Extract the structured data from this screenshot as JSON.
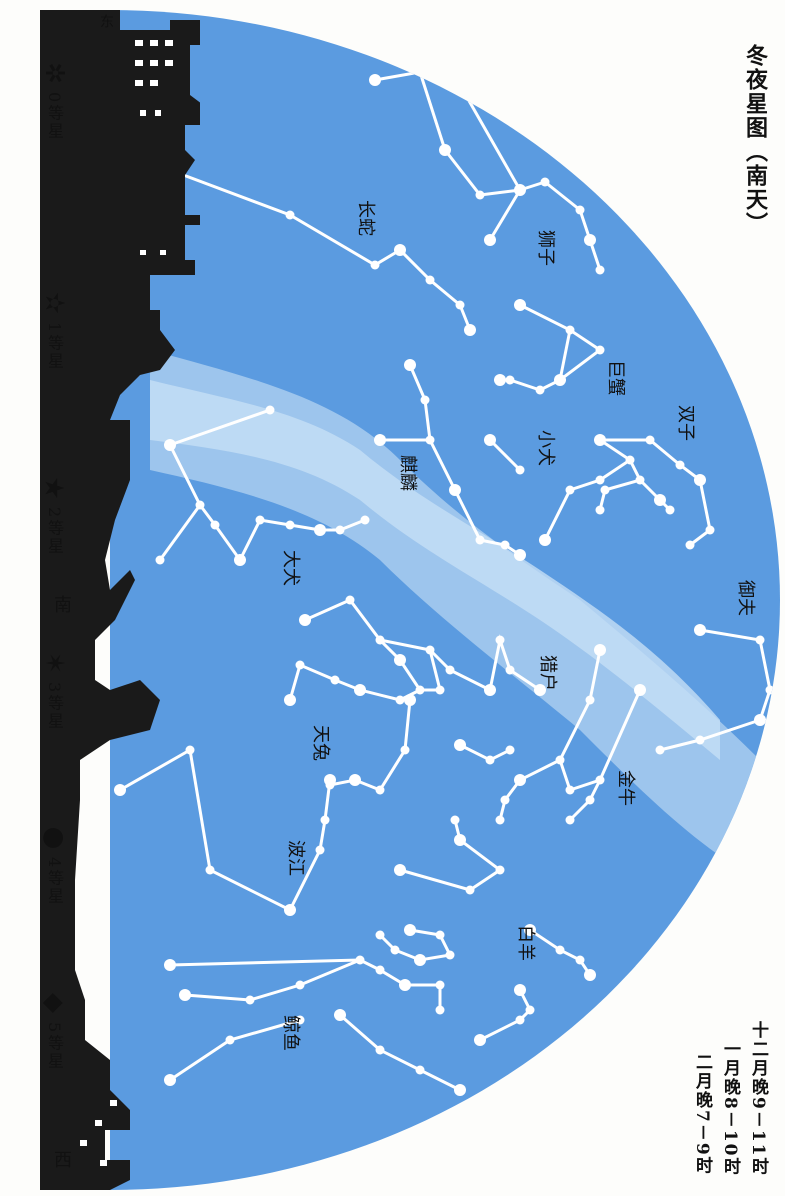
{
  "title": "冬夜星图（南天）",
  "times": [
    "十二月晚9－11时",
    "一月晚8－10时",
    "二月晚7－9时"
  ],
  "directions": {
    "east": "东",
    "south": "南",
    "west": "西"
  },
  "legend": [
    {
      "symbol": "✲",
      "label": "0等星",
      "icon": "magnitude-0-star-icon"
    },
    {
      "symbol": "✫",
      "label": "1等星",
      "icon": "magnitude-1-star-icon"
    },
    {
      "symbol": "★",
      "label": "2等星",
      "icon": "magnitude-2-star-icon"
    },
    {
      "symbol": "✶",
      "label": "3等星",
      "icon": "magnitude-3-star-icon"
    },
    {
      "symbol": "●",
      "label": "4等星",
      "icon": "magnitude-4-star-icon"
    },
    {
      "symbol": "◆",
      "label": "5等星",
      "icon": "magnitude-5-star-icon"
    }
  ],
  "constellations": {
    "lion": "狮子",
    "hydra": "长蛇",
    "cancer": "巨蟹",
    "gemini": "双子",
    "canis_minor": "小犬",
    "monoceros": "麒麟",
    "canis_major": "大犬",
    "auriga": "御夫",
    "orion": "猎户",
    "lepus": "天兔",
    "taurus": "金牛",
    "eridanus": "波江",
    "aries": "白羊",
    "cetus": "鲸鱼"
  },
  "colors": {
    "sky": "#5b9be0",
    "milky_way": "#a9cdee",
    "silhouette": "#1a1a1a",
    "stars": "#ffffff"
  }
}
